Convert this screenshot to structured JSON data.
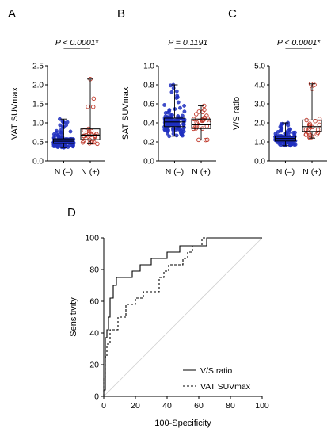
{
  "colors": {
    "neg": "#1f2fbf",
    "pos": "#c0392b",
    "axis": "#000000",
    "diag": "#d0d0d0"
  },
  "chart_data": [
    {
      "panel_label": "A",
      "type": "box",
      "ylabel": "VAT SUVmax",
      "ylim": [
        0,
        2.5
      ],
      "yticks": [
        "0.0",
        "0.5",
        "1.0",
        "1.5",
        "2.0",
        "2.5"
      ],
      "categories": [
        "N (–)",
        "N (+)"
      ],
      "p_value": "P < 0.0001",
      "p_star": "*",
      "boxes": [
        {
          "min": 0.35,
          "q1": 0.46,
          "median": 0.52,
          "q3": 0.58,
          "max": 1.1
        },
        {
          "min": 0.45,
          "q1": 0.56,
          "median": 0.68,
          "q3": 0.84,
          "max": 2.15
        }
      ]
    },
    {
      "panel_label": "B",
      "type": "box",
      "ylabel": "SAT SUVmax",
      "ylim": [
        0,
        1.0
      ],
      "yticks": [
        "0.0",
        "0.2",
        "0.4",
        "0.6",
        "0.8",
        "1.0"
      ],
      "categories": [
        "N (–)",
        "N (+)"
      ],
      "p_value": "P = 0.1191",
      "p_star": "",
      "boxes": [
        {
          "min": 0.26,
          "q1": 0.36,
          "median": 0.41,
          "q3": 0.45,
          "max": 0.8
        },
        {
          "min": 0.22,
          "q1": 0.34,
          "median": 0.38,
          "q3": 0.44,
          "max": 0.58
        }
      ]
    },
    {
      "panel_label": "C",
      "type": "box",
      "ylabel": "V/S ratio",
      "ylim": [
        0,
        5.0
      ],
      "yticks": [
        "0.0",
        "1.0",
        "2.0",
        "3.0",
        "4.0",
        "5.0"
      ],
      "categories": [
        "N (–)",
        "N (+)"
      ],
      "p_value": "P < 0.0001",
      "p_star": "*",
      "boxes": [
        {
          "min": 0.8,
          "q1": 1.05,
          "median": 1.18,
          "q3": 1.3,
          "max": 2.0
        },
        {
          "min": 1.2,
          "q1": 1.55,
          "median": 1.8,
          "q3": 2.15,
          "max": 4.05
        }
      ]
    },
    {
      "panel_label": "D",
      "type": "line",
      "xlabel": "100-Specificity",
      "ylabel": "Sensitivity",
      "xlim": [
        0,
        100
      ],
      "ylim": [
        0,
        100
      ],
      "xticks": [
        "0",
        "20",
        "40",
        "60",
        "80",
        "100"
      ],
      "yticks": [
        "0",
        "20",
        "40",
        "60",
        "80",
        "100"
      ],
      "series": [
        {
          "name": "V/S ratio",
          "dash": "",
          "points": [
            [
              0,
              0
            ],
            [
              0,
              4
            ],
            [
              1,
              4
            ],
            [
              1,
              29
            ],
            [
              1,
              37
            ],
            [
              2,
              37
            ],
            [
              2,
              42
            ],
            [
              3,
              42
            ],
            [
              3,
              50
            ],
            [
              4,
              50
            ],
            [
              4,
              62
            ],
            [
              6,
              62
            ],
            [
              6,
              70
            ],
            [
              8,
              70
            ],
            [
              8,
              75
            ],
            [
              18,
              75
            ],
            [
              18,
              79
            ],
            [
              23,
              79
            ],
            [
              23,
              83
            ],
            [
              30,
              83
            ],
            [
              30,
              87
            ],
            [
              40,
              87
            ],
            [
              40,
              91
            ],
            [
              48,
              91
            ],
            [
              48,
              95
            ],
            [
              65,
              95
            ],
            [
              65,
              100
            ],
            [
              100,
              100
            ]
          ]
        },
        {
          "name": "VAT SUVmax",
          "dash": "3,2",
          "points": [
            [
              0,
              0
            ],
            [
              0,
              12
            ],
            [
              1,
              12
            ],
            [
              1,
              25
            ],
            [
              2,
              25
            ],
            [
              2,
              33
            ],
            [
              4,
              33
            ],
            [
              4,
              42
            ],
            [
              9,
              42
            ],
            [
              9,
              50
            ],
            [
              14,
              50
            ],
            [
              14,
              58
            ],
            [
              20,
              58
            ],
            [
              20,
              62
            ],
            [
              25,
              62
            ],
            [
              25,
              66
            ],
            [
              35,
              66
            ],
            [
              35,
              75
            ],
            [
              38,
              75
            ],
            [
              38,
              79
            ],
            [
              41,
              79
            ],
            [
              41,
              83
            ],
            [
              50,
              83
            ],
            [
              50,
              87
            ],
            [
              53,
              87
            ],
            [
              53,
              91
            ],
            [
              56,
              91
            ],
            [
              56,
              95
            ],
            [
              62,
              95
            ],
            [
              62,
              100
            ],
            [
              100,
              100
            ]
          ]
        }
      ]
    }
  ]
}
